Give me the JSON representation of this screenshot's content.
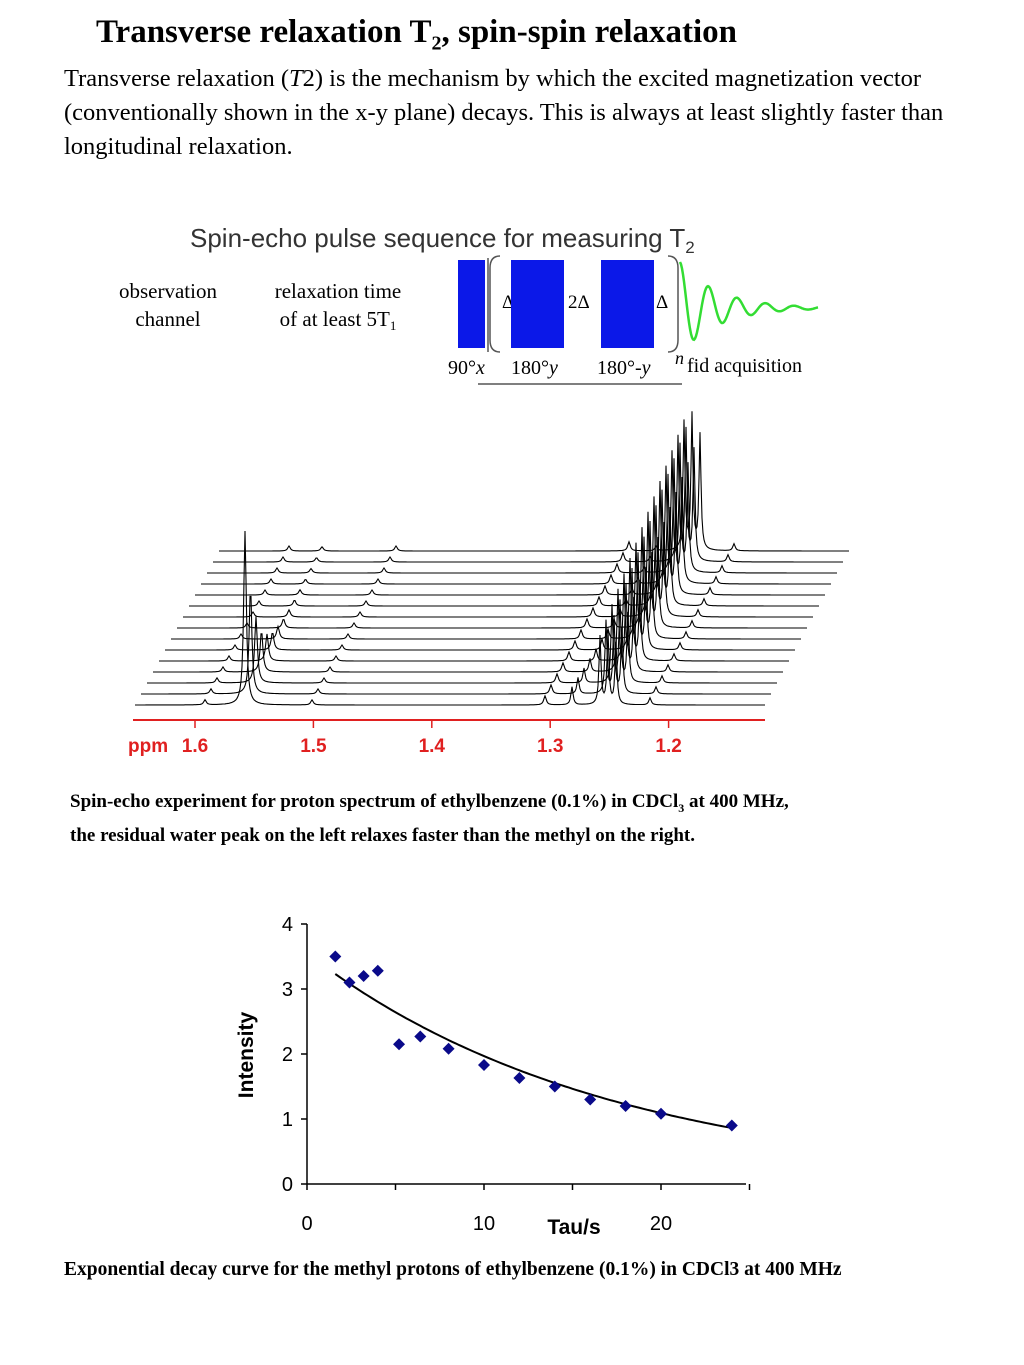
{
  "header": {
    "title_main": "Transverse relaxation T",
    "title_sub": "2",
    "title_rest": ", spin-spin relaxation"
  },
  "intro": {
    "part1": "Transverse relaxation (",
    "italic": "T",
    "part2": "2) is the mechanism by which the excited magnetization vector (conventionally shown in the x-y plane) decays. This is always at least slightly faster than longitudinal relaxation."
  },
  "pulse_sequence": {
    "title": "Spin-echo pulse sequence for measuring T",
    "title_sub": "2",
    "observation_line1": "observation",
    "observation_line2": "channel",
    "relax_line1": "relaxation time",
    "relax_line2": "of at least 5T",
    "relax_sub": "1",
    "delta1": "Δ",
    "delta2": "2Δ",
    "delta3": "Δ",
    "label_90": "90°",
    "label_90_phase": "x",
    "label_180a": "180°",
    "label_180a_phase": "y",
    "label_180b": "180°-",
    "label_180b_phase": "y",
    "n_label": "n",
    "fid_label": "fid acquisition",
    "colors": {
      "pulse": "#0b18e8",
      "fid": "#33dd33"
    }
  },
  "spectrum": {
    "axis_label": "ppm",
    "ticks": [
      "1.6",
      "1.5",
      "1.4",
      "1.3",
      "1.2"
    ],
    "trace_count": 15,
    "colors": {
      "axis": "#e02020",
      "trace": "#000000"
    }
  },
  "caption1": {
    "part1": "Spin-echo experiment for proton spectrum of ethylbenzene (0.1%) in CDCl",
    "sub": "3",
    "part2": " at 400 MHz,",
    "line2": "the residual water peak on the left relaxes faster than the methyl on the right."
  },
  "chart_data": {
    "type": "scatter",
    "xlabel": "Tau/s",
    "ylabel": "Intensity",
    "xlim": [
      0,
      25
    ],
    "ylim": [
      0,
      4
    ],
    "xticks": [
      "0",
      "10",
      "20"
    ],
    "yticks": [
      "0",
      "1",
      "2",
      "3",
      "4"
    ],
    "points": [
      {
        "x": 1.6,
        "y": 3.5
      },
      {
        "x": 2.4,
        "y": 3.1
      },
      {
        "x": 3.2,
        "y": 3.2
      },
      {
        "x": 4.0,
        "y": 3.28
      },
      {
        "x": 5.2,
        "y": 2.15
      },
      {
        "x": 6.4,
        "y": 2.27
      },
      {
        "x": 8.0,
        "y": 2.08
      },
      {
        "x": 10.0,
        "y": 1.83
      },
      {
        "x": 12.0,
        "y": 1.63
      },
      {
        "x": 14.0,
        "y": 1.5
      },
      {
        "x": 16.0,
        "y": 1.3
      },
      {
        "x": 18.0,
        "y": 1.2
      },
      {
        "x": 20.0,
        "y": 1.08
      },
      {
        "x": 24.0,
        "y": 0.9
      }
    ],
    "fit": {
      "a": 3.55,
      "k": 0.059,
      "x_start": 1.6,
      "x_end": 24.0
    },
    "colors": {
      "marker": "#0a0a8a",
      "fit": "#000000"
    }
  },
  "caption2": {
    "text": "Exponential decay curve for the methyl protons of ethylbenzene (0.1%) in CDCl3 at 400 MHz"
  }
}
